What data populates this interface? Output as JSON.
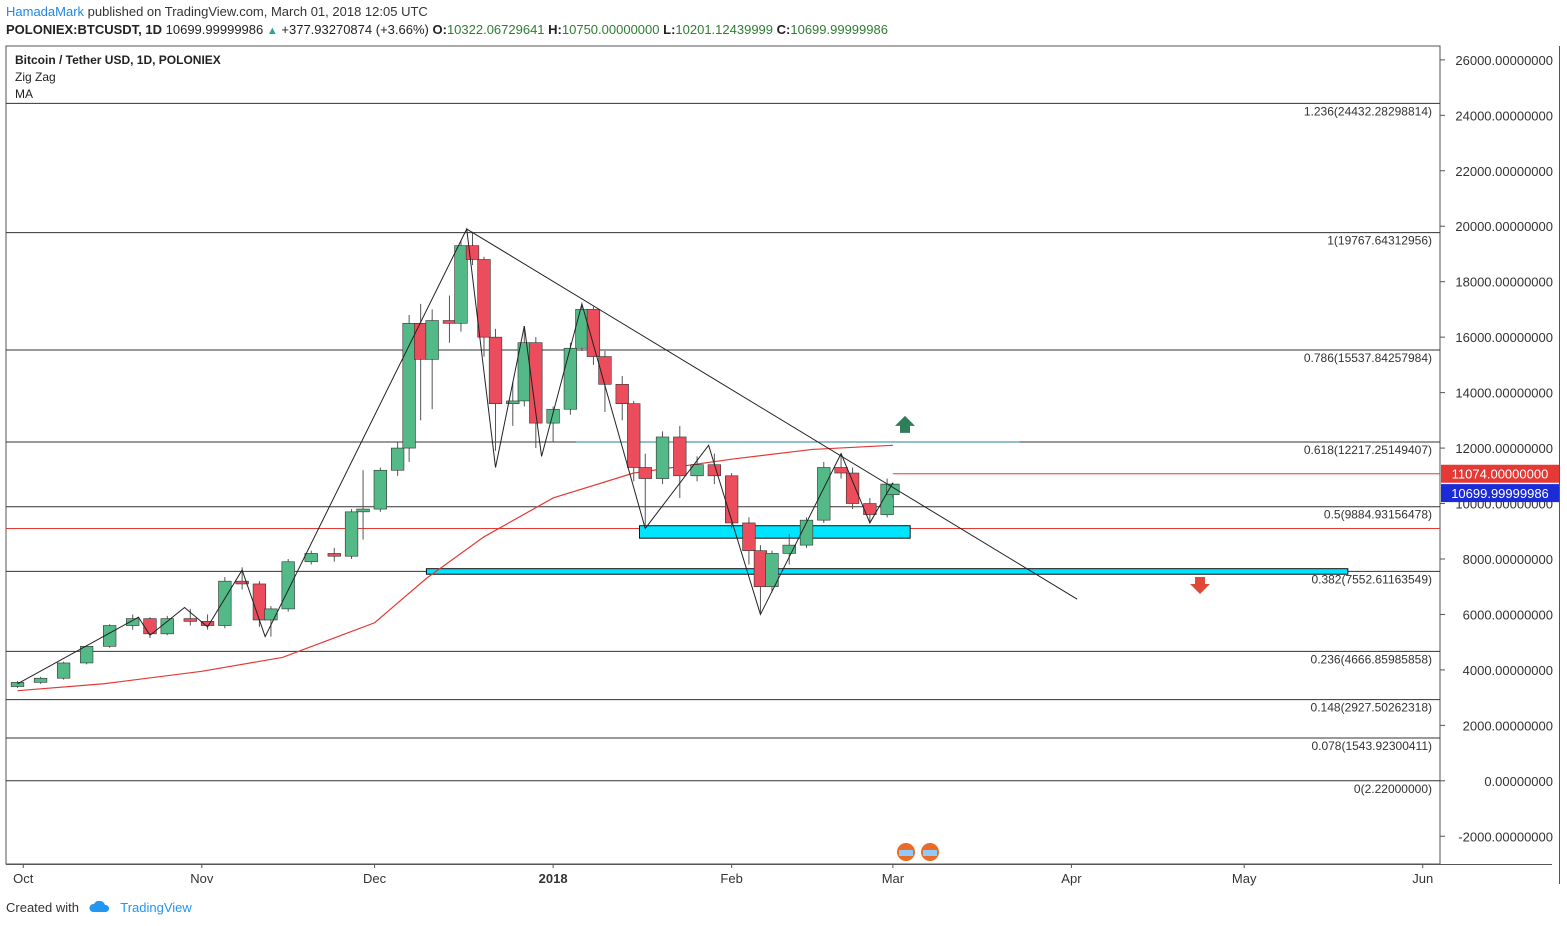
{
  "header": {
    "author": "HamadaMark",
    "published_text": "published on TradingView.com, March 01, 2018 12:05 UTC",
    "symbol": "POLONIEX:BTCUSDT, 1D",
    "last": "10699.99999986",
    "change": "+377.93270874 (+3.66%)",
    "o_label": "O:",
    "o": "10322.06729641",
    "h_label": "H:",
    "h": "10750.00000000",
    "l_label": "L:",
    "l": "10201.12439999",
    "c_label": "C:",
    "c": "10699.99999986"
  },
  "legend": {
    "title": "Bitcoin / Tether USD, 1D, POLONIEX",
    "ind1": "Zig Zag",
    "ind2": "MA"
  },
  "footer": {
    "created": "Created with",
    "brand": "TradingView"
  },
  "colors": {
    "up": "#53b987",
    "down": "#eb4d5c",
    "ma": "#e53935",
    "zone": "#00e5ff",
    "price_tag": "#1b2bd6",
    "level_tag": "#e53935",
    "arrow_up": "#2e7d5b",
    "arrow_down": "#e0493a"
  },
  "chart_data": {
    "type": "candlestick",
    "ylim": [
      -3000,
      26500
    ],
    "y_ticks": [
      "26000.00000000",
      "24000.00000000",
      "22000.00000000",
      "20000.00000000",
      "18000.00000000",
      "16000.00000000",
      "14000.00000000",
      "12000.00000000",
      "10000.00000000",
      "8000.00000000",
      "6000.00000000",
      "4000.00000000",
      "2000.00000000",
      "0.00000000",
      "-2000.00000000"
    ],
    "x_labels": [
      {
        "date": "2017-10-01",
        "label": "Oct"
      },
      {
        "date": "2017-11-01",
        "label": "Nov"
      },
      {
        "date": "2017-12-01",
        "label": "Dec"
      },
      {
        "date": "2018-01-01",
        "label": "2018",
        "bold": true
      },
      {
        "date": "2018-02-01",
        "label": "Feb"
      },
      {
        "date": "2018-03-01",
        "label": "Mar"
      },
      {
        "date": "2018-04-01",
        "label": "Apr"
      },
      {
        "date": "2018-05-01",
        "label": "May"
      },
      {
        "date": "2018-06-01",
        "label": "Jun"
      }
    ],
    "price_tags": [
      {
        "value": 11074,
        "label": "11074.00000000",
        "kind": "level"
      },
      {
        "value": 10700,
        "label": "10699.99999986",
        "kind": "last"
      }
    ],
    "fib_levels": [
      {
        "ratio": "1.236",
        "value": 24432.28,
        "label": "1.236(24432.28298814)"
      },
      {
        "ratio": "1",
        "value": 19767.64,
        "label": "1(19767.64312956)"
      },
      {
        "ratio": "0.786",
        "value": 15537.84,
        "label": "0.786(15537.84257984)"
      },
      {
        "ratio": "0.618",
        "value": 12217.25,
        "label": "0.618(12217.25149407)"
      },
      {
        "ratio": "0.5",
        "value": 9884.93,
        "label": "0.5(9884.93156478)"
      },
      {
        "ratio": "0.382",
        "value": 7552.61,
        "label": "0.382(7552.61163549)"
      },
      {
        "ratio": "0.236",
        "value": 4666.86,
        "label": "0.236(4666.85985858)"
      },
      {
        "ratio": "0.148",
        "value": 2927.5,
        "label": "0.148(2927.50262318)"
      },
      {
        "ratio": "0.078",
        "value": 1543.92,
        "label": "0.078(1543.92300411)"
      },
      {
        "ratio": "0",
        "value": 2.22,
        "label": "0(2.22000000)"
      }
    ],
    "horizontal_lines": [
      {
        "value": 9100,
        "color": "#e53935",
        "style": "thin"
      },
      {
        "value": 11074,
        "color": "#e53935",
        "from": "2018-03-01",
        "style": "thin"
      },
      {
        "value": 12217,
        "color": "#26808c",
        "from": "2018-01-05",
        "to": "2018-03-23"
      }
    ],
    "zones": [
      {
        "from": "2018-01-16",
        "to": "2018-03-04",
        "low": 8750,
        "high": 9200
      },
      {
        "from": "2017-12-10",
        "to": "2018-05-19",
        "low": 7450,
        "high": 7650
      }
    ],
    "trend_line": {
      "from": {
        "date": "2017-12-17",
        "value": 19900
      },
      "to": {
        "date": "2018-04-02",
        "value": 6550
      }
    },
    "zigzag": [
      [
        "2017-09-30",
        3500
      ],
      [
        "2017-10-21",
        5900
      ],
      [
        "2017-10-23",
        5250
      ],
      [
        "2017-10-29",
        6250
      ],
      [
        "2017-11-02",
        5550
      ],
      [
        "2017-11-08",
        7600
      ],
      [
        "2017-11-12",
        5200
      ],
      [
        "2017-12-17",
        19900
      ],
      [
        "2017-12-22",
        11300
      ],
      [
        "2017-12-27",
        16400
      ],
      [
        "2017-12-30",
        11700
      ],
      [
        "2018-01-06",
        17200
      ],
      [
        "2018-01-17",
        9100
      ],
      [
        "2018-01-28",
        12100
      ],
      [
        "2018-02-06",
        6000
      ],
      [
        "2018-02-20",
        11800
      ],
      [
        "2018-02-25",
        9300
      ],
      [
        "2018-03-01",
        10750
      ]
    ],
    "ma_series": [
      [
        "2017-09-30",
        3250
      ],
      [
        "2017-10-15",
        3500
      ],
      [
        "2017-11-01",
        3950
      ],
      [
        "2017-11-15",
        4450
      ],
      [
        "2017-12-01",
        5700
      ],
      [
        "2017-12-10",
        7300
      ],
      [
        "2017-12-20",
        8800
      ],
      [
        "2018-01-01",
        10200
      ],
      [
        "2018-01-15",
        11100
      ],
      [
        "2018-02-01",
        11600
      ],
      [
        "2018-02-15",
        11950
      ],
      [
        "2018-03-01",
        12100
      ]
    ],
    "candles": [
      [
        "2017-09-30",
        3400,
        3600,
        3350,
        3550
      ],
      [
        "2017-10-04",
        3550,
        3750,
        3500,
        3700
      ],
      [
        "2017-10-08",
        3700,
        4300,
        3650,
        4250
      ],
      [
        "2017-10-12",
        4250,
        4900,
        4200,
        4850
      ],
      [
        "2017-10-16",
        4850,
        5650,
        4800,
        5600
      ],
      [
        "2017-10-20",
        5600,
        6000,
        5450,
        5850
      ],
      [
        "2017-10-23",
        5850,
        5900,
        5150,
        5300
      ],
      [
        "2017-10-26",
        5300,
        5950,
        5250,
        5850
      ],
      [
        "2017-10-30",
        5850,
        6200,
        5600,
        5750
      ],
      [
        "2017-11-02",
        5750,
        6000,
        5450,
        5600
      ],
      [
        "2017-11-05",
        5600,
        7350,
        5500,
        7200
      ],
      [
        "2017-11-08",
        7200,
        7700,
        6900,
        7100
      ],
      [
        "2017-11-11",
        7100,
        7200,
        5550,
        5800
      ],
      [
        "2017-11-13",
        5800,
        6300,
        5200,
        6200
      ],
      [
        "2017-11-16",
        6200,
        8000,
        6100,
        7900
      ],
      [
        "2017-11-20",
        7900,
        8300,
        7800,
        8200
      ],
      [
        "2017-11-24",
        8200,
        8400,
        7900,
        8100
      ],
      [
        "2017-11-27",
        8100,
        9800,
        8000,
        9700
      ],
      [
        "2017-11-29",
        9700,
        11200,
        8700,
        9800
      ],
      [
        "2017-12-02",
        9800,
        11300,
        9700,
        11200
      ],
      [
        "2017-12-05",
        11200,
        12200,
        11000,
        12000
      ],
      [
        "2017-12-07",
        12000,
        16800,
        11500,
        16500
      ],
      [
        "2017-12-09",
        16500,
        17200,
        13000,
        15200
      ],
      [
        "2017-12-11",
        15200,
        17000,
        13400,
        16600
      ],
      [
        "2017-12-14",
        16600,
        17500,
        15800,
        16500
      ],
      [
        "2017-12-16",
        16500,
        19500,
        16200,
        19300
      ],
      [
        "2017-12-18",
        19300,
        19800,
        18600,
        18800
      ],
      [
        "2017-12-20",
        18800,
        18900,
        15300,
        16000
      ],
      [
        "2017-12-22",
        16000,
        16300,
        11900,
        13600
      ],
      [
        "2017-12-25",
        13600,
        14400,
        12800,
        13700
      ],
      [
        "2017-12-27",
        13700,
        16400,
        13500,
        15800
      ],
      [
        "2017-12-29",
        15800,
        16000,
        12000,
        12900
      ],
      [
        "2018-01-01",
        12900,
        13500,
        12200,
        13400
      ],
      [
        "2018-01-04",
        13400,
        15800,
        13200,
        15600
      ],
      [
        "2018-01-06",
        15600,
        17200,
        15500,
        17000
      ],
      [
        "2018-01-08",
        17000,
        17100,
        15000,
        15300
      ],
      [
        "2018-01-10",
        15300,
        15500,
        13300,
        14300
      ],
      [
        "2018-01-13",
        14300,
        14600,
        13000,
        13600
      ],
      [
        "2018-01-15",
        13600,
        13700,
        10800,
        11300
      ],
      [
        "2018-01-17",
        11300,
        11800,
        9200,
        10900
      ],
      [
        "2018-01-20",
        10900,
        12600,
        10700,
        12400
      ],
      [
        "2018-01-23",
        12400,
        12800,
        10200,
        11000
      ],
      [
        "2018-01-26",
        11000,
        11700,
        10800,
        11400
      ],
      [
        "2018-01-29",
        11400,
        11800,
        10700,
        11000
      ],
      [
        "2018-02-01",
        11000,
        11100,
        9100,
        9300
      ],
      [
        "2018-02-04",
        9300,
        9500,
        7800,
        8300
      ],
      [
        "2018-02-06",
        8300,
        8500,
        6000,
        7000
      ],
      [
        "2018-02-08",
        7000,
        8300,
        6800,
        8200
      ],
      [
        "2018-02-11",
        8200,
        8900,
        7800,
        8500
      ],
      [
        "2018-02-14",
        8500,
        9500,
        8400,
        9400
      ],
      [
        "2018-02-17",
        9400,
        11500,
        9300,
        11300
      ],
      [
        "2018-02-20",
        11300,
        11800,
        10900,
        11100
      ],
      [
        "2018-02-22",
        11100,
        11300,
        9800,
        10000
      ],
      [
        "2018-02-25",
        10000,
        10200,
        9300,
        9600
      ],
      [
        "2018-02-28",
        9600,
        10900,
        9500,
        10700
      ],
      [
        "2018-03-01",
        10320,
        10750,
        10200,
        10700
      ]
    ]
  }
}
